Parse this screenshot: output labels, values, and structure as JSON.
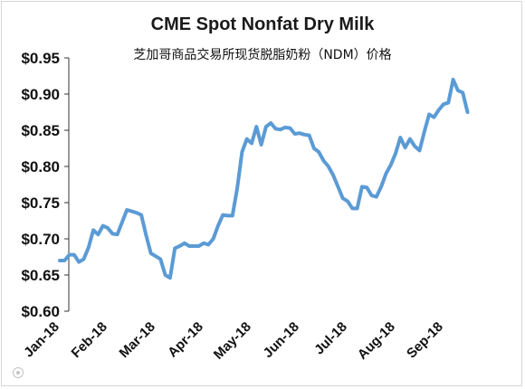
{
  "chart_data": {
    "type": "line",
    "title": "CME Spot Nonfat Dry Milk",
    "subtitle": "芝加哥商品交易所现货脱脂奶粉（NDM）价格",
    "xlabel": "",
    "ylabel": "",
    "ylim": [
      0.6,
      0.95
    ],
    "yticks": [
      "$0.60",
      "$0.65",
      "$0.70",
      "$0.75",
      "$0.80",
      "$0.85",
      "$0.90",
      "$0.95"
    ],
    "ytick_values": [
      0.6,
      0.65,
      0.7,
      0.75,
      0.8,
      0.85,
      0.9,
      0.95
    ],
    "xticks": [
      "Jan-18",
      "Feb-18",
      "Mar-18",
      "Apr-18",
      "May-18",
      "Jun-18",
      "Jul-18",
      "Aug-18",
      "Sep-18"
    ],
    "grid": false,
    "legend": "none",
    "line_color": "#5b9bd5",
    "series": [
      {
        "x": [
          0.0,
          0.1,
          0.2,
          0.3,
          0.4,
          0.5,
          0.6,
          0.7,
          0.8,
          0.9,
          1.0,
          1.1,
          1.2,
          1.3,
          1.4,
          1.5,
          1.6,
          1.7,
          1.8,
          1.9,
          2.0,
          2.1,
          2.2,
          2.3,
          2.4,
          2.5,
          2.6,
          2.7,
          2.8,
          2.9,
          3.0,
          3.1,
          3.2,
          3.3,
          3.4,
          3.5,
          3.6,
          3.7,
          3.8,
          3.9,
          4.0,
          4.1,
          4.2,
          4.3,
          4.4,
          4.5,
          4.6,
          4.7,
          4.8,
          4.9,
          5.0,
          5.1,
          5.2,
          5.3,
          5.4,
          5.5,
          5.6,
          5.7,
          5.8,
          5.9,
          6.0,
          6.1,
          6.2,
          6.3,
          6.4,
          6.5,
          6.6,
          6.7,
          6.8,
          6.9,
          7.0,
          7.1,
          7.2,
          7.3,
          7.4,
          7.5,
          7.6,
          7.7,
          7.8,
          7.9,
          8.0,
          8.1,
          8.2,
          8.3,
          8.4,
          8.5
        ],
        "values": [
          0.67,
          0.67,
          0.678,
          0.678,
          0.668,
          0.672,
          0.688,
          0.712,
          0.706,
          0.718,
          0.715,
          0.707,
          0.706,
          0.723,
          0.74,
          0.738,
          0.736,
          0.733,
          0.705,
          0.68,
          0.676,
          0.672,
          0.65,
          0.646,
          0.687,
          0.69,
          0.694,
          0.69,
          0.69,
          0.69,
          0.694,
          0.692,
          0.7,
          0.718,
          0.733,
          0.732,
          0.732,
          0.77,
          0.82,
          0.838,
          0.832,
          0.855,
          0.83,
          0.855,
          0.86,
          0.852,
          0.851,
          0.854,
          0.853,
          0.845,
          0.846,
          0.844,
          0.843,
          0.825,
          0.82,
          0.808,
          0.8,
          0.788,
          0.772,
          0.756,
          0.752,
          0.742,
          0.742,
          0.772,
          0.771,
          0.76,
          0.758,
          0.772,
          0.79,
          0.802,
          0.818,
          0.84,
          0.826,
          0.838,
          0.828,
          0.822,
          0.848,
          0.872,
          0.868,
          0.878,
          0.886,
          0.888,
          0.92,
          0.905,
          0.902,
          0.875
        ]
      }
    ]
  }
}
